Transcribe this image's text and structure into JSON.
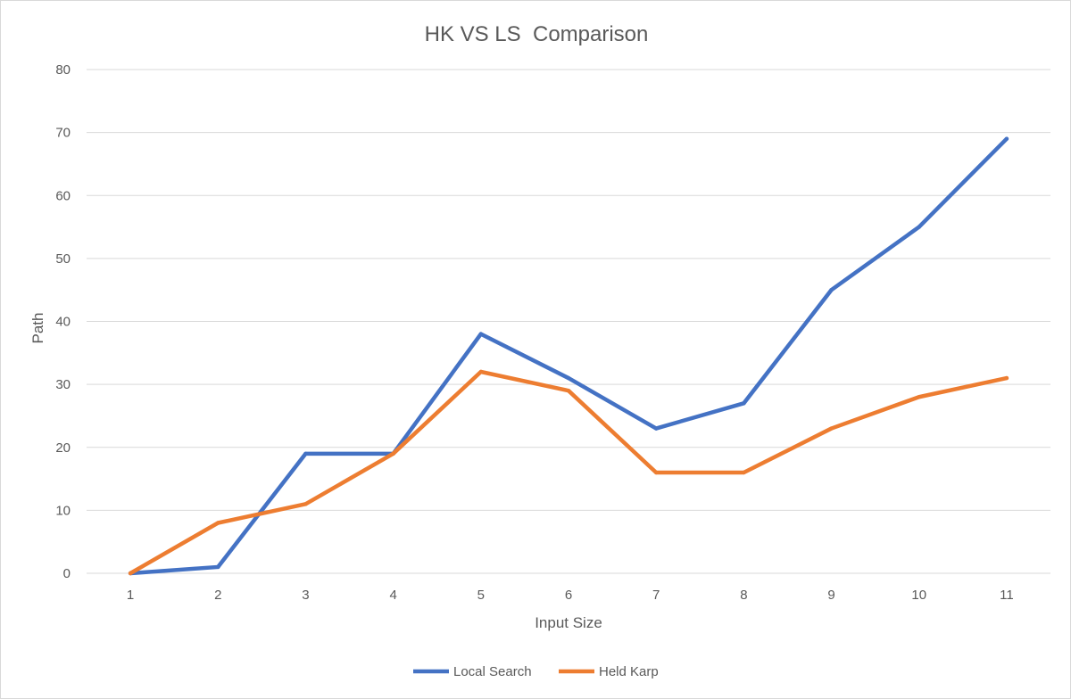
{
  "chart_data": {
    "type": "line",
    "title": "HK VS LS  Comparison",
    "xlabel": "Input Size",
    "ylabel": "Path",
    "categories": [
      "1",
      "2",
      "3",
      "4",
      "5",
      "6",
      "7",
      "8",
      "9",
      "10",
      "11"
    ],
    "y_ticks": [
      "0",
      "10",
      "20",
      "30",
      "40",
      "50",
      "60",
      "70",
      "80"
    ],
    "ylim": [
      0,
      80
    ],
    "grid": true,
    "legend_position": "bottom",
    "series": [
      {
        "name": "Local Search",
        "color": "#4472c4",
        "values": [
          0,
          1,
          19,
          19,
          38,
          31,
          23,
          27,
          45,
          55,
          69
        ]
      },
      {
        "name": "Held Karp",
        "color": "#ed7d31",
        "values": [
          0,
          8,
          11,
          19,
          32,
          29,
          16,
          16,
          23,
          28,
          31
        ]
      }
    ]
  }
}
